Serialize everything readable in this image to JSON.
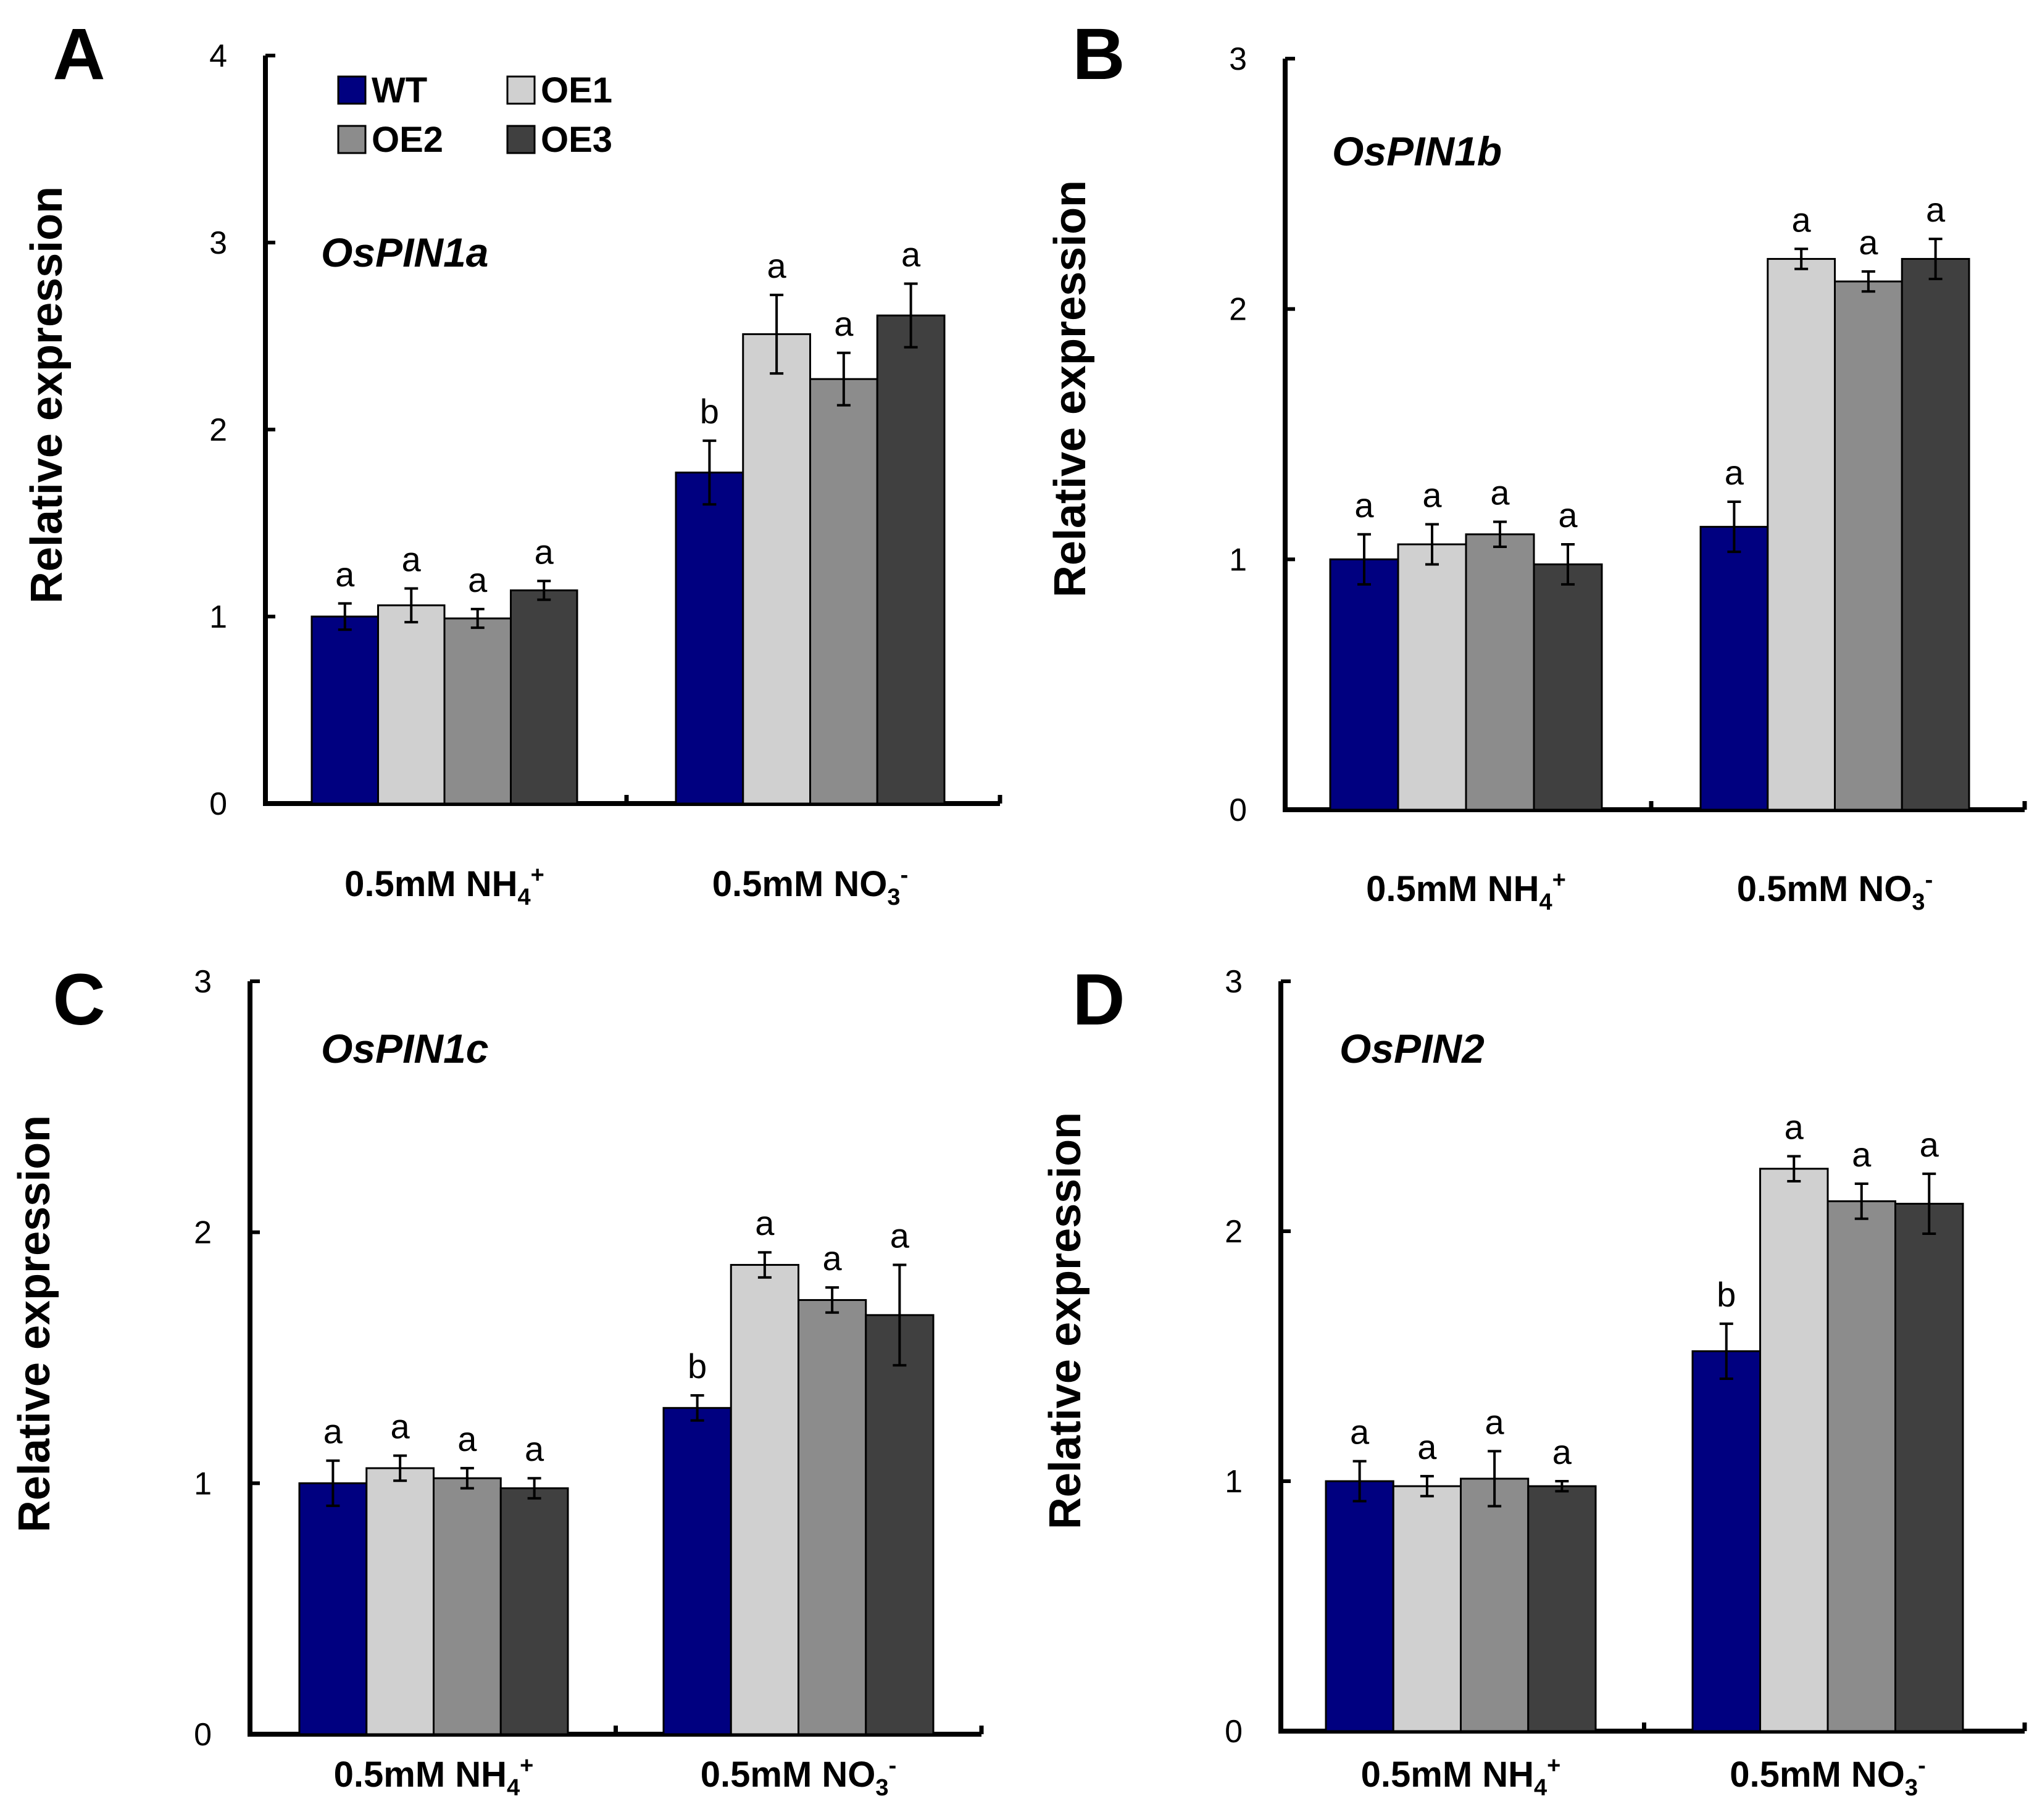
{
  "figure": {
    "series_colors": {
      "WT": "#000080",
      "OE1": "#d0d0d0",
      "OE2": "#8c8c8c",
      "OE3": "#404040"
    }
  },
  "legend": {
    "entries": [
      "WT",
      "OE1",
      "OE2",
      "OE3"
    ]
  },
  "chart_data": [
    {
      "panel": "A",
      "type": "bar",
      "title": "OsPIN1a",
      "ylabel": "Relative expression",
      "xlabel": "",
      "ylim": [
        0,
        4
      ],
      "yticks": [
        "0",
        "1",
        "2",
        "3",
        "4"
      ],
      "categories": [
        "0.5mM NH",
        "0.5mM NO"
      ],
      "category_parts": [
        {
          "base": "0.5mM NH",
          "sub": "4",
          "sup": "+"
        },
        {
          "base": "0.5mM NO",
          "sub": "3",
          "sup": "-"
        }
      ],
      "series": [
        {
          "name": "WT",
          "values": [
            1.0,
            1.77
          ],
          "errors": [
            0.07,
            0.17
          ],
          "letters": [
            "a",
            "b"
          ]
        },
        {
          "name": "OE1",
          "values": [
            1.06,
            2.51
          ],
          "errors": [
            0.09,
            0.21
          ],
          "letters": [
            "a",
            "a"
          ]
        },
        {
          "name": "OE2",
          "values": [
            0.99,
            2.27
          ],
          "errors": [
            0.05,
            0.14
          ],
          "letters": [
            "a",
            "a"
          ]
        },
        {
          "name": "OE3",
          "values": [
            1.14,
            2.61
          ],
          "errors": [
            0.05,
            0.17
          ],
          "letters": [
            "a",
            "a"
          ]
        }
      ]
    },
    {
      "panel": "B",
      "type": "bar",
      "title": "OsPIN1b",
      "ylabel": "Relative expression",
      "xlabel": "",
      "ylim": [
        0,
        3
      ],
      "yticks": [
        "0",
        "1",
        "2",
        "3"
      ],
      "categories": [
        "0.5mM NH",
        "0.5mM NO"
      ],
      "category_parts": [
        {
          "base": "0.5mM NH",
          "sub": "4",
          "sup": "+"
        },
        {
          "base": "0.5mM NO",
          "sub": "3",
          "sup": "-"
        }
      ],
      "series": [
        {
          "name": "WT",
          "values": [
            1.0,
            1.13
          ],
          "errors": [
            0.1,
            0.1
          ],
          "letters": [
            "a",
            "a"
          ]
        },
        {
          "name": "OE1",
          "values": [
            1.06,
            2.2
          ],
          "errors": [
            0.08,
            0.04
          ],
          "letters": [
            "a",
            "a"
          ]
        },
        {
          "name": "OE2",
          "values": [
            1.1,
            2.11
          ],
          "errors": [
            0.05,
            0.04
          ],
          "letters": [
            "a",
            "a"
          ]
        },
        {
          "name": "OE3",
          "values": [
            0.98,
            2.2
          ],
          "errors": [
            0.08,
            0.08
          ],
          "letters": [
            "a",
            "a"
          ]
        }
      ]
    },
    {
      "panel": "C",
      "type": "bar",
      "title": "OsPIN1c",
      "ylabel": "Relative expression",
      "xlabel": "",
      "ylim": [
        0,
        3
      ],
      "yticks": [
        "0",
        "1",
        "2",
        "3"
      ],
      "categories": [
        "0.5mM NH",
        "0.5mM NO"
      ],
      "category_parts": [
        {
          "base": "0.5mM NH",
          "sub": "4",
          "sup": "+"
        },
        {
          "base": "0.5mM NO",
          "sub": "3",
          "sup": "-"
        }
      ],
      "series": [
        {
          "name": "WT",
          "values": [
            1.0,
            1.3
          ],
          "errors": [
            0.09,
            0.05
          ],
          "letters": [
            "a",
            "b"
          ]
        },
        {
          "name": "OE1",
          "values": [
            1.06,
            1.87
          ],
          "errors": [
            0.05,
            0.05
          ],
          "letters": [
            "a",
            "a"
          ]
        },
        {
          "name": "OE2",
          "values": [
            1.02,
            1.73
          ],
          "errors": [
            0.04,
            0.05
          ],
          "letters": [
            "a",
            "a"
          ]
        },
        {
          "name": "OE3",
          "values": [
            0.98,
            1.67
          ],
          "errors": [
            0.04,
            0.2
          ],
          "letters": [
            "a",
            "a"
          ]
        }
      ]
    },
    {
      "panel": "D",
      "type": "bar",
      "title": "OsPIN2",
      "ylabel": "Relative expression",
      "xlabel": "",
      "ylim": [
        0,
        3
      ],
      "yticks": [
        "0",
        "1",
        "2",
        "3"
      ],
      "categories": [
        "0.5mM NH",
        "0.5mM NO"
      ],
      "category_parts": [
        {
          "base": "0.5mM NH",
          "sub": "4",
          "sup": "+"
        },
        {
          "base": "0.5mM NO",
          "sub": "3",
          "sup": "-"
        }
      ],
      "series": [
        {
          "name": "WT",
          "values": [
            1.0,
            1.52
          ],
          "errors": [
            0.08,
            0.11
          ],
          "letters": [
            "a",
            "b"
          ]
        },
        {
          "name": "OE1",
          "values": [
            0.98,
            2.25
          ],
          "errors": [
            0.04,
            0.05
          ],
          "letters": [
            "a",
            "a"
          ]
        },
        {
          "name": "OE2",
          "values": [
            1.01,
            2.12
          ],
          "errors": [
            0.11,
            0.07
          ],
          "letters": [
            "a",
            "a"
          ]
        },
        {
          "name": "OE3",
          "values": [
            0.98,
            2.11
          ],
          "errors": [
            0.02,
            0.12
          ],
          "letters": [
            "a",
            "a"
          ]
        }
      ]
    }
  ]
}
